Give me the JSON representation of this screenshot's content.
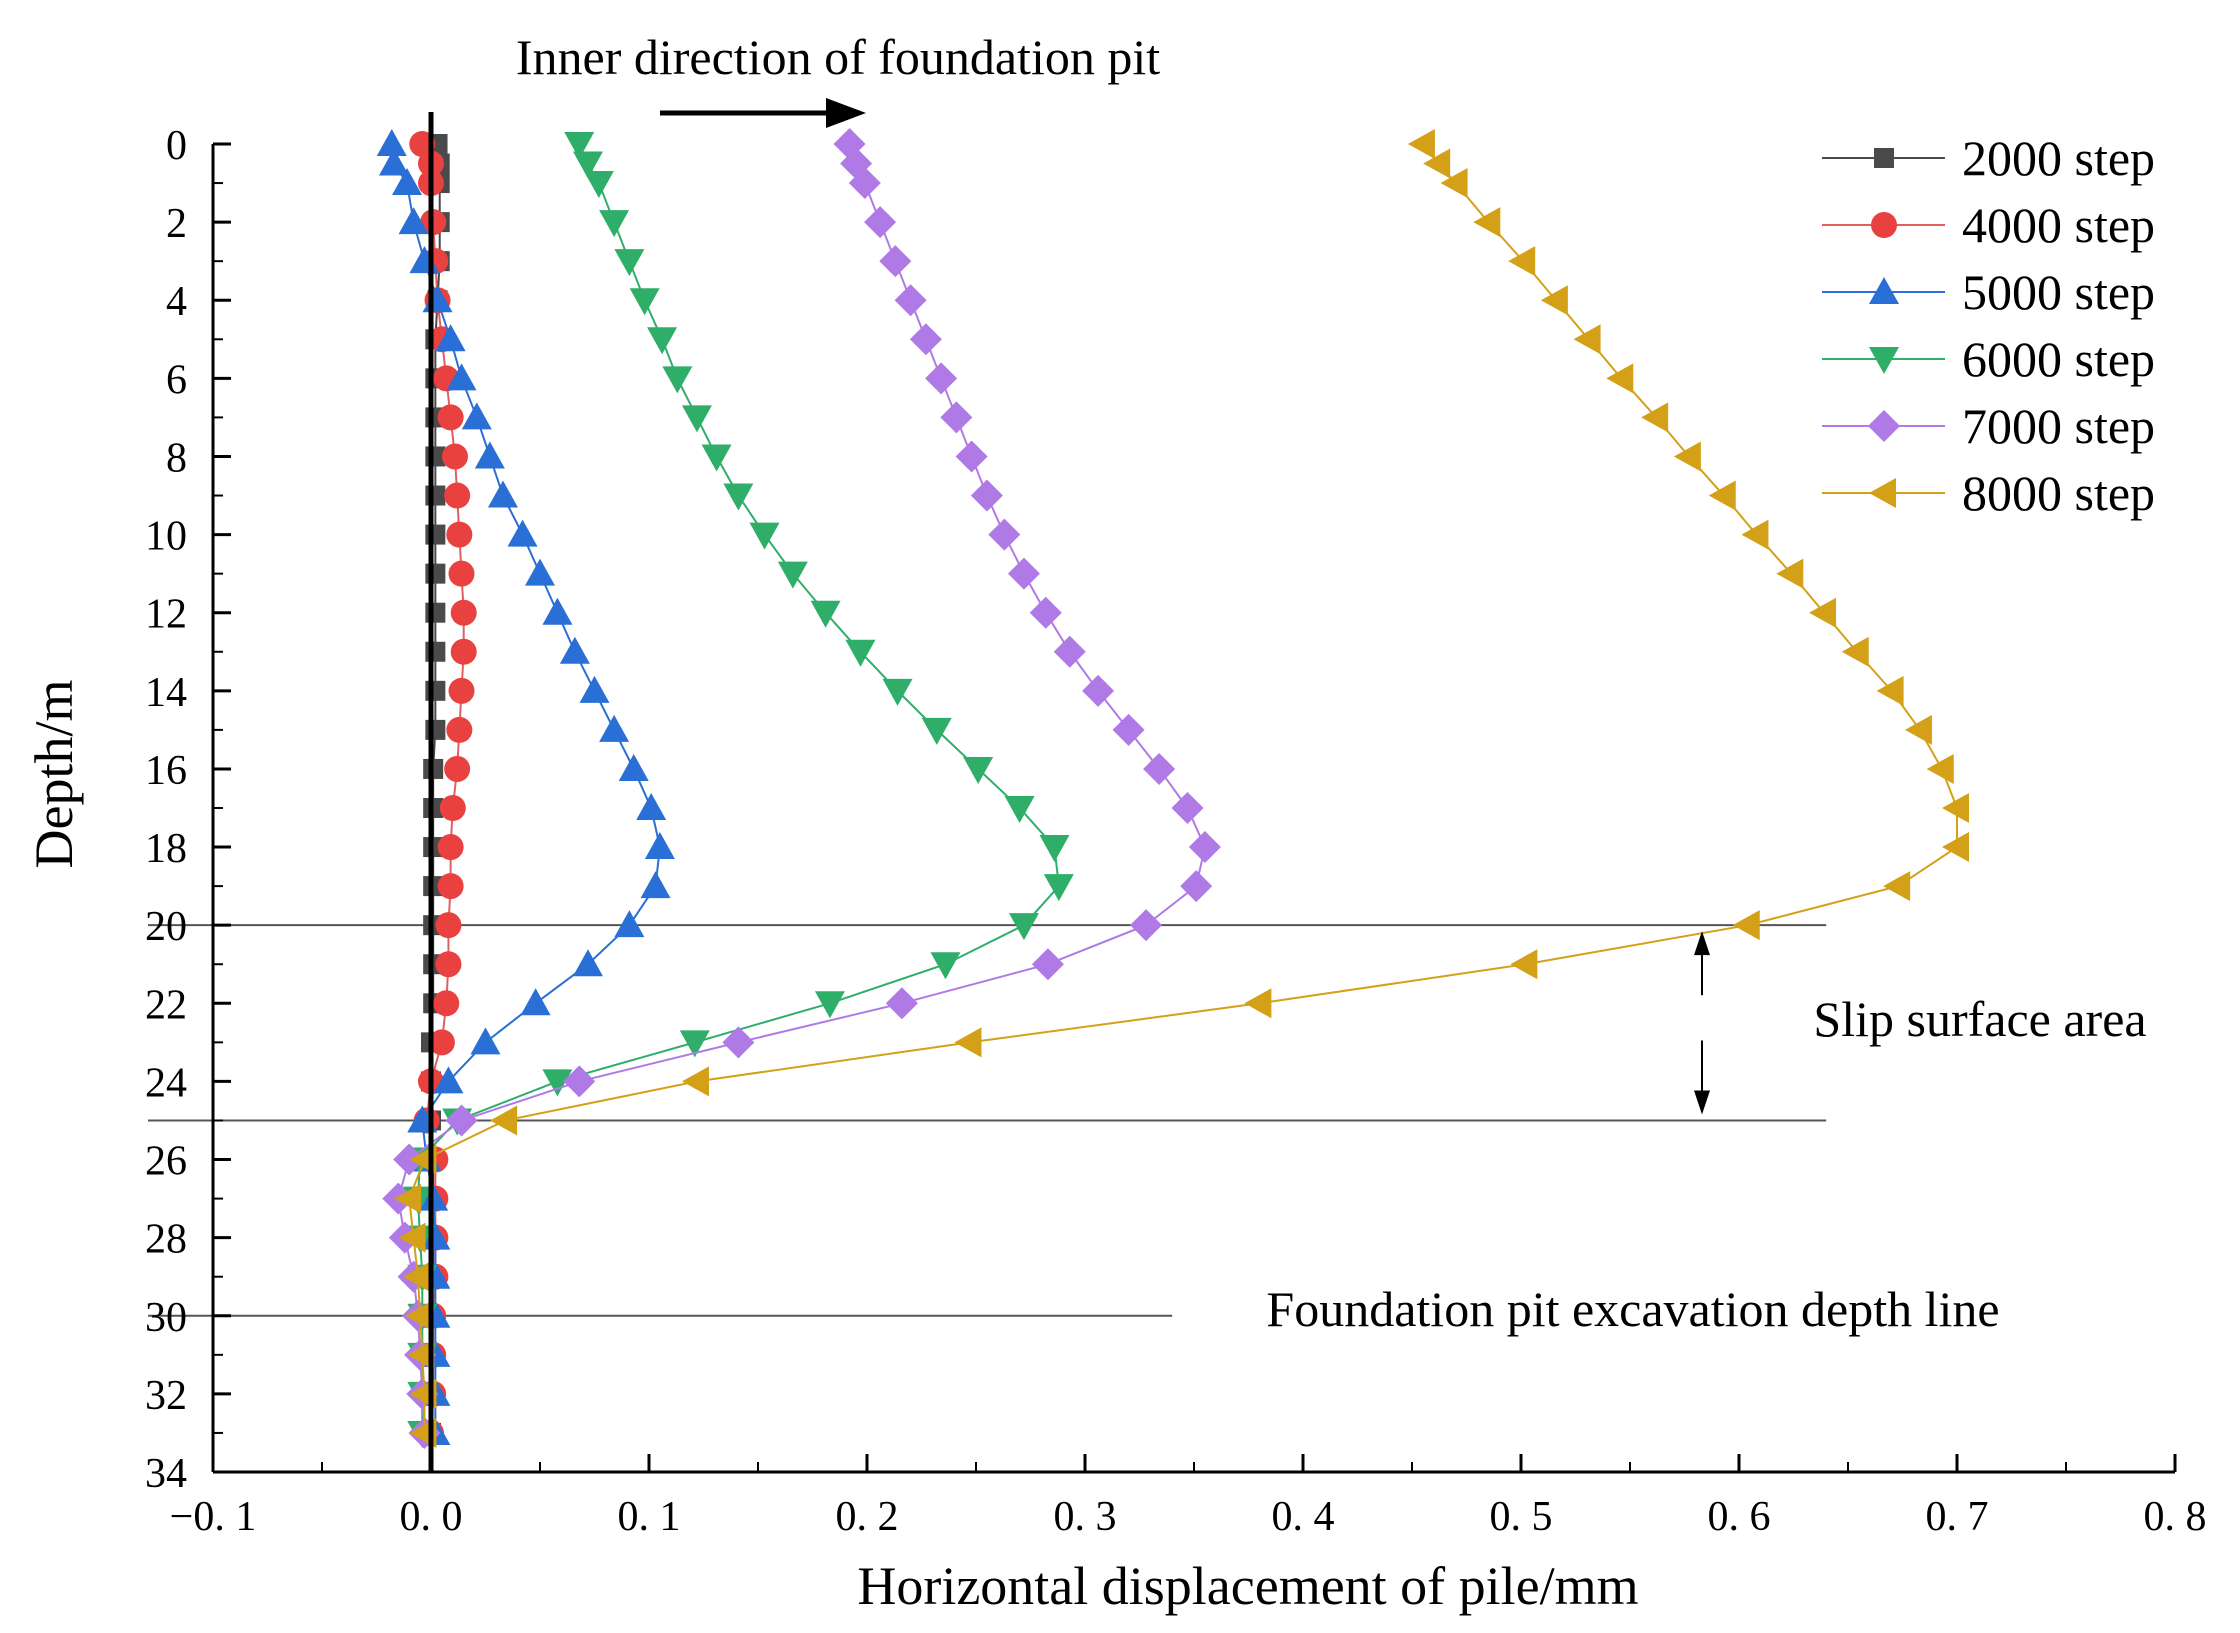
{
  "chart_data": {
    "type": "line",
    "title": "",
    "xlabel": "Horizontal displacement of pile/mm",
    "ylabel": "Depth/m",
    "xlim": [
      -0.1,
      0.8
    ],
    "ylim": [
      0,
      34
    ],
    "y_inverted": true,
    "x_ticks": [
      -0.1,
      0.0,
      0.1,
      0.2,
      0.3,
      0.4,
      0.5,
      0.6,
      0.7,
      0.8
    ],
    "x_tick_labels": [
      "−0. 1",
      "0. 0",
      "0. 1",
      "0. 2",
      "0. 3",
      "0. 4",
      "0. 5",
      "0. 6",
      "0. 7",
      "0. 8"
    ],
    "y_ticks": [
      0,
      2,
      4,
      6,
      8,
      10,
      12,
      14,
      16,
      18,
      20,
      22,
      24,
      26,
      28,
      30,
      32,
      34
    ],
    "y_tick_labels": [
      "0",
      "2",
      "4",
      "6",
      "8",
      "10",
      "12",
      "14",
      "16",
      "18",
      "20",
      "22",
      "24",
      "26",
      "28",
      "30",
      "32",
      "34"
    ],
    "legend_position": "top-right",
    "depths": [
      0,
      0.5,
      1,
      2,
      3,
      4,
      5,
      6,
      7,
      8,
      9,
      10,
      11,
      12,
      13,
      14,
      15,
      16,
      17,
      18,
      19,
      20,
      21,
      22,
      23,
      24,
      25,
      26,
      27,
      28,
      29,
      30,
      31,
      32,
      33
    ],
    "series": [
      {
        "name": "2000 step",
        "marker": "square",
        "color": "#4a4a4a",
        "line_color": "#4a4a4a",
        "values": [
          0.003,
          0.004,
          0.004,
          0.004,
          0.004,
          0.003,
          0.002,
          0.002,
          0.002,
          0.002,
          0.002,
          0.002,
          0.002,
          0.002,
          0.002,
          0.002,
          0.002,
          0.001,
          0.001,
          0.001,
          0.001,
          0.001,
          0.001,
          0.001,
          0.0,
          0.0,
          0.0,
          0.001,
          0.001,
          0.001,
          0.001,
          0.0,
          0.0,
          0.0,
          0.0
        ]
      },
      {
        "name": "4000 step",
        "marker": "circle",
        "color": "#e94040",
        "line_color": "#e06060",
        "values": [
          -0.004,
          0.0,
          0.0,
          0.001,
          0.002,
          0.003,
          0.005,
          0.007,
          0.009,
          0.011,
          0.012,
          0.013,
          0.014,
          0.015,
          0.015,
          0.014,
          0.013,
          0.012,
          0.01,
          0.009,
          0.009,
          0.008,
          0.008,
          0.007,
          0.005,
          0.0,
          -0.002,
          0.002,
          0.002,
          0.002,
          0.002,
          0.001,
          0.001,
          0.001,
          0.0
        ]
      },
      {
        "name": "5000 step",
        "marker": "triangle-up",
        "color": "#2a6fd6",
        "line_color": "#2a6fd6",
        "values": [
          -0.018,
          -0.017,
          -0.011,
          -0.008,
          -0.003,
          0.003,
          0.009,
          0.014,
          0.021,
          0.027,
          0.033,
          0.042,
          0.05,
          0.058,
          0.066,
          0.075,
          0.084,
          0.093,
          0.101,
          0.105,
          0.103,
          0.091,
          0.072,
          0.048,
          0.025,
          0.008,
          -0.004,
          -0.002,
          0.001,
          0.002,
          0.002,
          0.002,
          0.002,
          0.002,
          0.002
        ]
      },
      {
        "name": "6000 step",
        "marker": "triangle-down",
        "color": "#2fae6a",
        "line_color": "#2fae6a",
        "values": [
          0.068,
          0.072,
          0.077,
          0.084,
          0.091,
          0.098,
          0.106,
          0.113,
          0.122,
          0.131,
          0.141,
          0.153,
          0.166,
          0.181,
          0.197,
          0.214,
          0.232,
          0.251,
          0.27,
          0.286,
          0.288,
          0.272,
          0.236,
          0.183,
          0.121,
          0.058,
          0.012,
          -0.005,
          -0.006,
          -0.005,
          -0.004,
          -0.004,
          -0.004,
          -0.004,
          -0.004
        ]
      },
      {
        "name": "7000 step",
        "marker": "diamond",
        "color": "#b07ae6",
        "line_color": "#b07ae6",
        "values": [
          0.192,
          0.195,
          0.199,
          0.206,
          0.213,
          0.22,
          0.227,
          0.234,
          0.241,
          0.248,
          0.255,
          0.263,
          0.272,
          0.282,
          0.293,
          0.306,
          0.32,
          0.334,
          0.347,
          0.355,
          0.351,
          0.328,
          0.283,
          0.216,
          0.141,
          0.068,
          0.014,
          -0.01,
          -0.015,
          -0.012,
          -0.008,
          -0.006,
          -0.005,
          -0.004,
          -0.003
        ]
      },
      {
        "name": "8000 step",
        "marker": "triangle-left",
        "color": "#d4a017",
        "line_color": "#d4a017",
        "values": [
          0.455,
          0.462,
          0.47,
          0.485,
          0.501,
          0.516,
          0.531,
          0.546,
          0.562,
          0.577,
          0.593,
          0.608,
          0.624,
          0.639,
          0.654,
          0.67,
          0.683,
          0.693,
          0.7,
          0.7,
          0.673,
          0.604,
          0.502,
          0.38,
          0.247,
          0.122,
          0.034,
          -0.003,
          -0.01,
          -0.008,
          -0.006,
          -0.005,
          -0.004,
          -0.003,
          -0.003
        ]
      }
    ],
    "reference_lines": [
      {
        "name": "slip-top",
        "depth": 20,
        "x_end": 0.64
      },
      {
        "name": "slip-bottom",
        "depth": 25,
        "x_end": 0.64
      },
      {
        "name": "excavation-depth",
        "depth": 30,
        "x_end": 0.34
      }
    ],
    "annotations": {
      "direction_text": "Inner direction of foundation pit",
      "slip_text": "Slip surface area",
      "excavation_text": "Foundation pit excavation depth line"
    }
  }
}
